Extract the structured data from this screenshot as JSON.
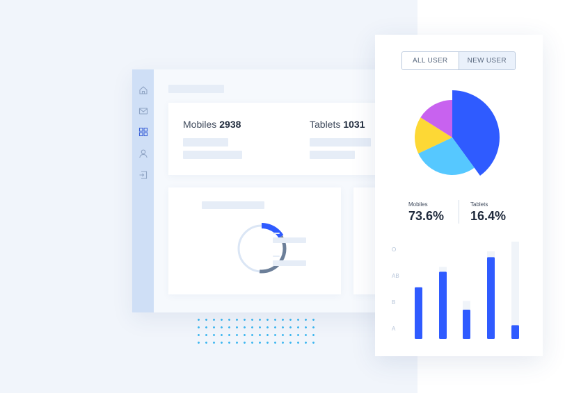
{
  "stats": {
    "mobiles": {
      "label": "Mobiles",
      "value": "2938"
    },
    "tablets": {
      "label": "Tablets",
      "value": "1031"
    }
  },
  "sidebar": {
    "icons": [
      "home-icon",
      "mail-icon",
      "grid-icon",
      "user-icon",
      "logout-icon"
    ],
    "active_icon": "grid-icon"
  },
  "analytics": {
    "tabs": [
      {
        "label": "ALL USER",
        "active": false
      },
      {
        "label": "NEW USER",
        "active": true
      }
    ],
    "pie_data": [
      {
        "name": "blue",
        "value": 40,
        "color": "#2f5bff"
      },
      {
        "name": "cyan",
        "value": 28,
        "color": "#56c8ff"
      },
      {
        "name": "yellow",
        "value": 16,
        "color": "#fdd835"
      },
      {
        "name": "purple",
        "value": 16,
        "color": "#c862ef"
      }
    ],
    "summary": [
      {
        "label": "Mobiles",
        "value": "73.6%"
      },
      {
        "label": "Tablets",
        "value": "16.4%"
      }
    ]
  },
  "chart_data": {
    "type": "bar",
    "y_labels": [
      "O",
      "AB",
      "B",
      "A"
    ],
    "values": [
      0.53,
      0.69,
      0.3,
      0.84,
      0.14
    ],
    "track_heights": [
      0.53,
      0.74,
      0.39,
      0.9,
      1.0
    ],
    "bar_color": "#2f5bff",
    "track_color": "#f0f4f9"
  },
  "donut": {
    "highlight_color": "#2f5bff",
    "mid_color": "#6c7f99",
    "track_color": "#dbe6f5"
  }
}
